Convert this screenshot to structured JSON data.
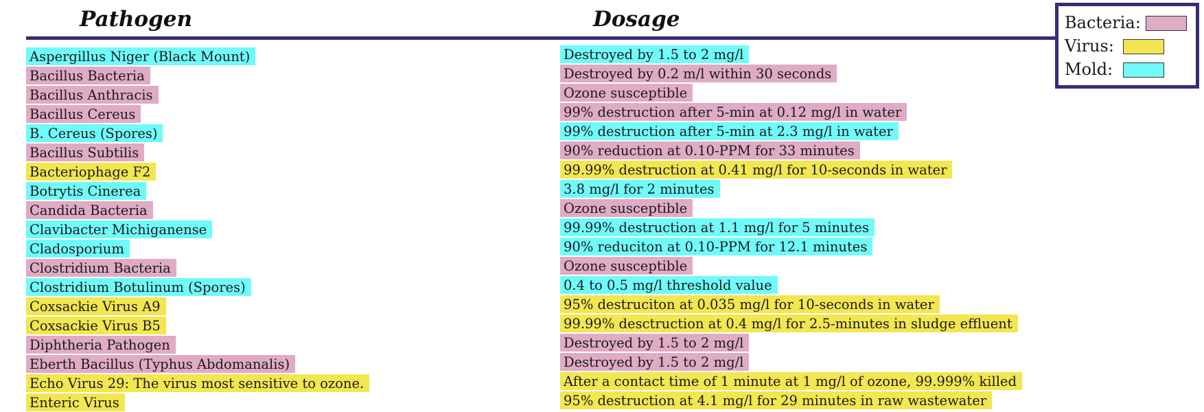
{
  "headers": {
    "pathogen": "Pathogen",
    "dosage": "Dosage"
  },
  "colors": {
    "bacteria": "#e0abc4",
    "virus": "#f2e651",
    "mold": "#70fafa",
    "rule": "#372d74"
  },
  "legend": [
    {
      "label": "Bacteria:",
      "type": "bacteria"
    },
    {
      "label": "Virus:",
      "type": "virus"
    },
    {
      "label": "Mold:",
      "type": "mold"
    }
  ],
  "rows": [
    {
      "name": "Aspergillus Niger (Black Mount)",
      "dosage": "Destroyed by 1.5 to 2 mg/l",
      "type": "mold"
    },
    {
      "name": "Bacillus Bacteria",
      "dosage": "Destroyed by 0.2 m/l within 30 seconds",
      "type": "bacteria"
    },
    {
      "name": "Bacillus Anthracis",
      "dosage": "Ozone susceptible",
      "type": "bacteria"
    },
    {
      "name": "Bacillus Cereus",
      "dosage": "99% destruction after 5-min at 0.12 mg/l in water",
      "type": "bacteria"
    },
    {
      "name": "B. Cereus (Spores)",
      "dosage": "99% destruction after 5-min at 2.3 mg/l in water",
      "type": "mold"
    },
    {
      "name": "Bacillus Subtilis",
      "dosage": "90% reduction at 0.10-PPM for 33 minutes",
      "type": "bacteria"
    },
    {
      "name": "Bacteriophage F2",
      "dosage": "99.99% destruction at 0.41 mg/l for 10-seconds in water",
      "type": "virus"
    },
    {
      "name": "Botrytis Cinerea",
      "dosage": "3.8 mg/l for 2 minutes",
      "type": "mold"
    },
    {
      "name": "Candida Bacteria",
      "dosage": "Ozone susceptible",
      "type": "bacteria"
    },
    {
      "name": "Clavibacter Michiganense",
      "dosage": "99.99% destruction at 1.1 mg/l for 5 minutes",
      "type": "mold"
    },
    {
      "name": "Cladosporium",
      "dosage": "90% reduciton at 0.10-PPM for 12.1 minutes",
      "type": "mold"
    },
    {
      "name": "Clostridium Bacteria",
      "dosage": "Ozone susceptible",
      "type": "bacteria"
    },
    {
      "name": "Clostridium Botulinum (Spores)",
      "dosage": "0.4 to 0.5 mg/l threshold value",
      "type": "mold"
    },
    {
      "name": "Coxsackie Virus A9",
      "dosage": "95% destruciton at 0.035 mg/l for 10-seconds in water",
      "type": "virus"
    },
    {
      "name": "Coxsackie Virus B5",
      "dosage": "99.99% desctruction at 0.4 mg/l for 2.5-minutes in sludge effluent",
      "type": "virus"
    },
    {
      "name": "Diphtheria Pathogen",
      "dosage": "Destroyed by 1.5 to 2 mg/l",
      "type": "bacteria"
    },
    {
      "name": "Eberth Bacillus (Typhus Abdomanalis)",
      "dosage": "Destroyed by 1.5 to 2 mg/l",
      "type": "bacteria"
    },
    {
      "name": "Echo Virus 29: The virus most sensitive to ozone.",
      "dosage": "After a contact time of 1 minute at 1 mg/l of ozone, 99.999% killed",
      "type": "virus"
    },
    {
      "name": "Enteric Virus",
      "dosage": "95% destruction at 4.1 mg/l for 29 minutes in raw wastewater",
      "type": "virus"
    }
  ]
}
